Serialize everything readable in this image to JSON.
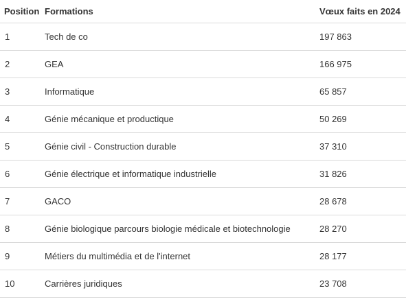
{
  "table": {
    "headers": [
      "Position",
      "Formations",
      "Vœux faits en 2024"
    ],
    "rows": [
      {
        "position": "1",
        "formation": "Tech de co",
        "voeux": "197 863"
      },
      {
        "position": "2",
        "formation": "GEA",
        "voeux": "166 975"
      },
      {
        "position": "3",
        "formation": "Informatique",
        "voeux": "65 857"
      },
      {
        "position": "4",
        "formation": "Génie mécanique et productique",
        "voeux": "50 269"
      },
      {
        "position": "5",
        "formation": "Génie civil - Construction durable",
        "voeux": "37 310"
      },
      {
        "position": "6",
        "formation": "Génie électrique et informatique industrielle",
        "voeux": "31 826"
      },
      {
        "position": "7",
        "formation": "GACO",
        "voeux": "28 678"
      },
      {
        "position": "8",
        "formation": "Génie biologique parcours biologie médicale et biotechnologie",
        "voeux": "28 270"
      },
      {
        "position": "9",
        "formation": "Métiers du multimédia et de l'internet",
        "voeux": "28 177"
      },
      {
        "position": "10",
        "formation": "Carrières juridiques",
        "voeux": "23 708"
      }
    ]
  }
}
